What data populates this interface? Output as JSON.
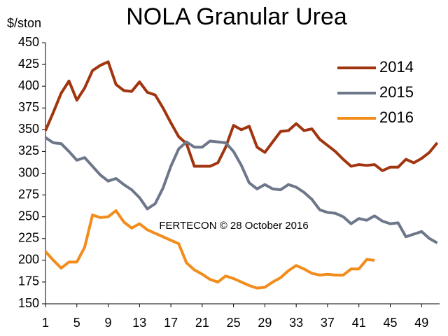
{
  "chart_data": {
    "type": "line",
    "title": "NOLA Granular Urea",
    "y_label": "$/ston",
    "annotation": "FERTECON © 28 October 2016",
    "x": [
      1,
      2,
      3,
      4,
      5,
      6,
      7,
      8,
      9,
      10,
      11,
      12,
      13,
      14,
      15,
      16,
      17,
      18,
      19,
      20,
      21,
      22,
      23,
      24,
      25,
      26,
      27,
      28,
      29,
      30,
      31,
      32,
      33,
      34,
      35,
      36,
      37,
      38,
      39,
      40,
      41,
      42,
      43,
      44,
      45,
      46,
      47,
      48,
      49,
      50,
      51
    ],
    "series": [
      {
        "name": "2014",
        "color": "#a0350f",
        "values": [
          349,
          370,
          392,
          406,
          384,
          398,
          418,
          424,
          428,
          402,
          395,
          394,
          405,
          393,
          390,
          375,
          358,
          342,
          334,
          308,
          308,
          308,
          312,
          330,
          355,
          350,
          354,
          330,
          324,
          336,
          348,
          349,
          357,
          349,
          351,
          339,
          332,
          325,
          316,
          308,
          310,
          309,
          310,
          303,
          307,
          307,
          316,
          312,
          317,
          324,
          335
        ]
      },
      {
        "name": "2015",
        "color": "#6d7789",
        "values": [
          341,
          335,
          334,
          325,
          315,
          318,
          308,
          298,
          291,
          294,
          287,
          281,
          272,
          259,
          265,
          283,
          308,
          328,
          336,
          330,
          330,
          337,
          336,
          335,
          325,
          309,
          289,
          282,
          287,
          282,
          281,
          287,
          284,
          278,
          270,
          258,
          255,
          254,
          250,
          242,
          248,
          246,
          251,
          245,
          242,
          243,
          227,
          230,
          233,
          225,
          220
        ]
      },
      {
        "name": "2016",
        "color": "#f28c1c",
        "values": [
          210,
          200,
          191,
          198,
          198,
          215,
          252,
          249,
          250,
          257,
          244,
          237,
          242,
          235,
          231,
          227,
          223,
          219,
          197,
          189,
          184,
          178,
          175,
          182,
          179,
          175,
          171,
          168,
          169,
          175,
          180,
          188,
          194,
          190,
          185,
          183,
          184,
          183,
          183,
          190,
          190,
          201,
          200,
          null,
          null,
          null,
          null,
          null,
          null,
          null,
          null
        ]
      }
    ],
    "xlim": [
      1,
      51.3
    ],
    "xticks": [
      1,
      5,
      9,
      13,
      17,
      21,
      25,
      29,
      33,
      37,
      41,
      45,
      49
    ],
    "ylim": [
      150,
      450
    ],
    "yticks": [
      150,
      175,
      200,
      225,
      250,
      275,
      300,
      325,
      350,
      375,
      400,
      425,
      450
    ],
    "grid": false,
    "legend": "top-right"
  }
}
